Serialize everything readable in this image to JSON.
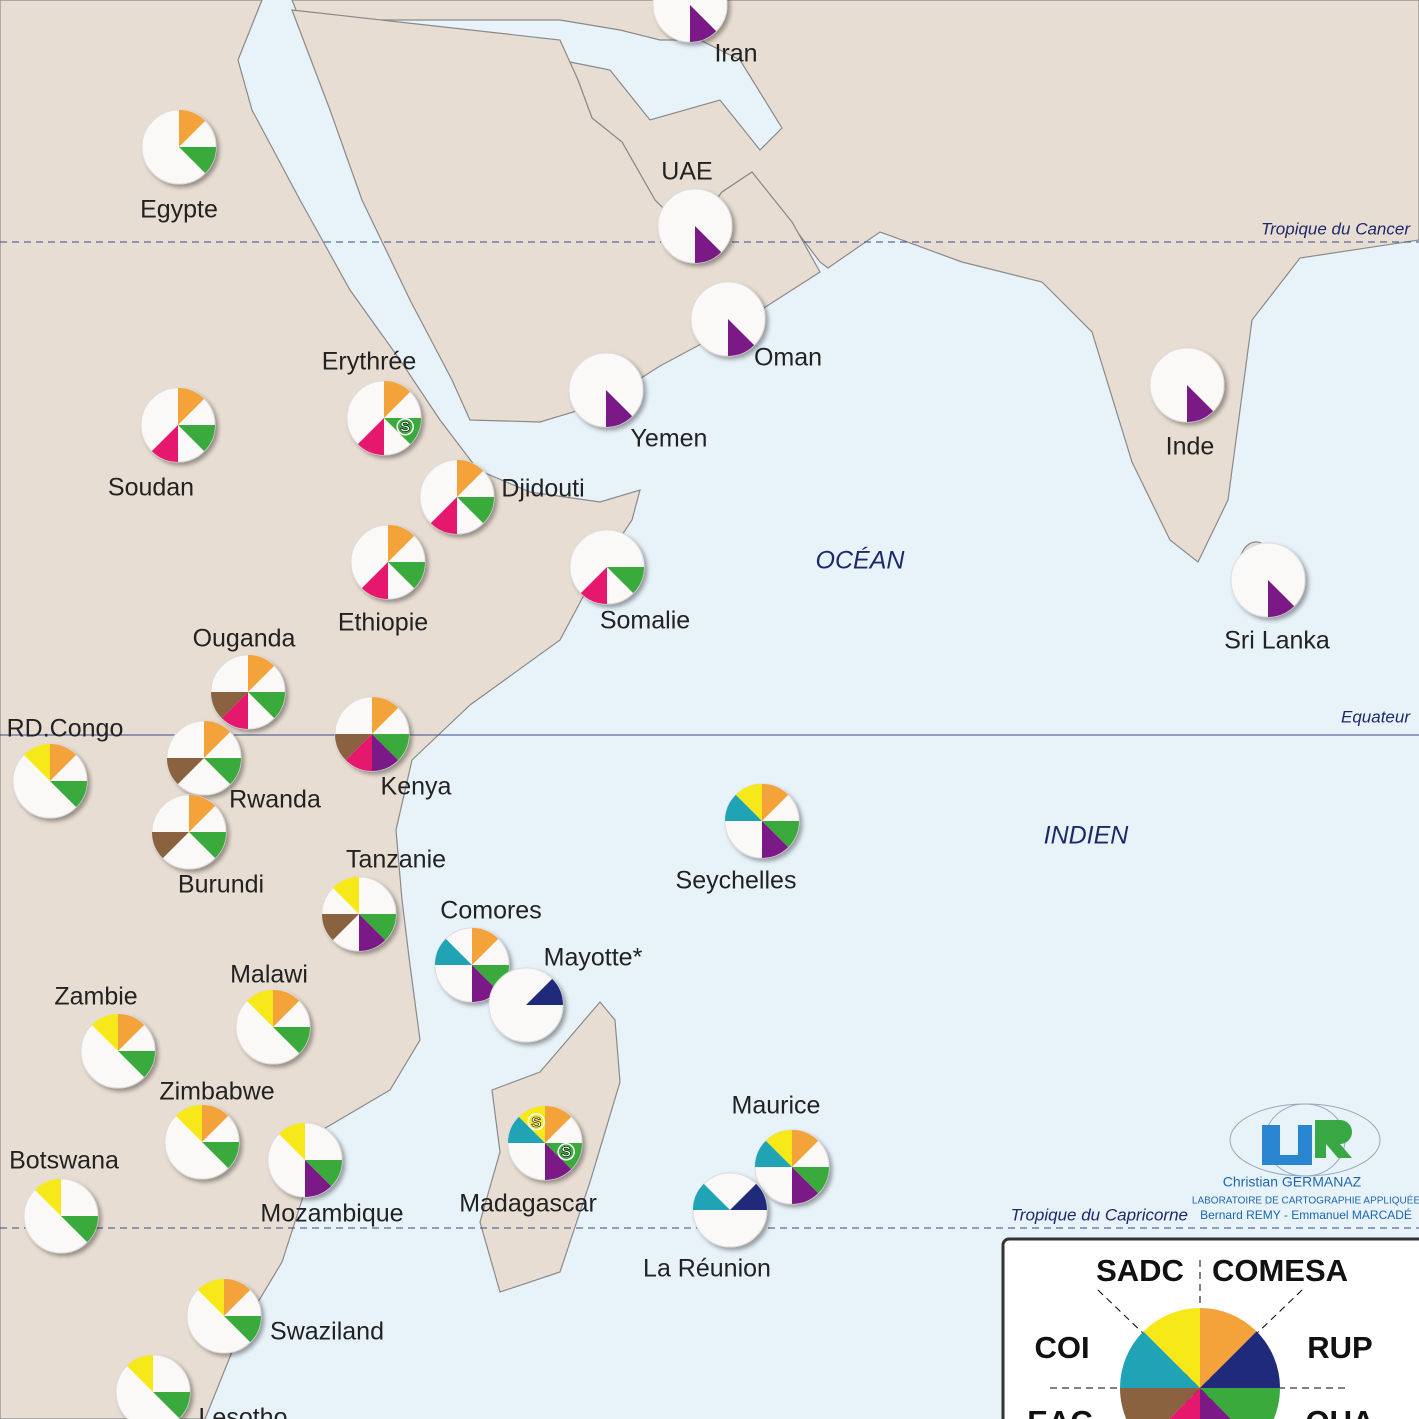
{
  "map": {
    "countries": [
      {
        "name": "Iran",
        "colors": [
          "#7b1a86"
        ]
      },
      {
        "name": "Egypte",
        "colors": [
          "#f4a23a",
          "#3aaa3c"
        ]
      },
      {
        "name": "UAE",
        "colors": [
          "#7b1a86"
        ]
      },
      {
        "name": "Oman",
        "colors": [
          "#7b1a86"
        ]
      },
      {
        "name": "Yemen",
        "colors": [
          "#7b1a86"
        ]
      },
      {
        "name": "Inde",
        "colors": [
          "#7b1a86"
        ]
      },
      {
        "name": "Sri Lanka",
        "colors": [
          "#7b1a86"
        ]
      },
      {
        "name": "Soudan",
        "colors": [
          "#f4a23a",
          "#3aaa3c",
          "#e5186e"
        ]
      },
      {
        "name": "Erythrée",
        "colors": [
          "#f4a23a",
          "#3aaa3c",
          "#e5186e"
        ],
        "suspended": [
          "#3aaa3c"
        ]
      },
      {
        "name": "Djidouti",
        "colors": [
          "#f4a23a",
          "#3aaa3c",
          "#e5186e"
        ]
      },
      {
        "name": "Ethiopie",
        "colors": [
          "#f4a23a",
          "#3aaa3c",
          "#e5186e"
        ]
      },
      {
        "name": "Somalie",
        "colors": [
          "#3aaa3c",
          "#e5186e"
        ]
      },
      {
        "name": "Ouganda",
        "colors": [
          "#f4a23a",
          "#3aaa3c",
          "#e5186e",
          "#8b6240"
        ]
      },
      {
        "name": "RD.Congo",
        "colors": [
          "#f7e81a",
          "#f4a23a",
          "#3aaa3c"
        ]
      },
      {
        "name": "Rwanda",
        "colors": [
          "#f4a23a",
          "#3aaa3c",
          "#8b6240"
        ]
      },
      {
        "name": "Kenya",
        "colors": [
          "#f4a23a",
          "#3aaa3c",
          "#7b1a86",
          "#e5186e",
          "#8b6240"
        ]
      },
      {
        "name": "Burundi",
        "colors": [
          "#f4a23a",
          "#3aaa3c",
          "#8b6240"
        ]
      },
      {
        "name": "Tanzanie",
        "colors": [
          "#f7e81a",
          "#3aaa3c",
          "#7b1a86",
          "#8b6240"
        ]
      },
      {
        "name": "Seychelles",
        "colors": [
          "#f7e81a",
          "#f4a23a",
          "#3aaa3c",
          "#7b1a86",
          "#1fa3b5"
        ]
      },
      {
        "name": "Comores",
        "colors": [
          "#f4a23a",
          "#3aaa3c",
          "#7b1a86",
          "#1fa3b5"
        ]
      },
      {
        "name": "Mayotte*",
        "colors": [
          "#1f2a7a"
        ]
      },
      {
        "name": "Malawi",
        "colors": [
          "#f7e81a",
          "#f4a23a",
          "#3aaa3c"
        ]
      },
      {
        "name": "Zambie",
        "colors": [
          "#f7e81a",
          "#f4a23a",
          "#3aaa3c"
        ]
      },
      {
        "name": "Zimbabwe",
        "colors": [
          "#f7e81a",
          "#f4a23a",
          "#3aaa3c"
        ]
      },
      {
        "name": "Madagascar",
        "colors": [
          "#f7e81a",
          "#f4a23a",
          "#3aaa3c",
          "#7b1a86",
          "#1fa3b5"
        ],
        "suspended": [
          "#f7e81a",
          "#3aaa3c"
        ]
      },
      {
        "name": "Maurice",
        "colors": [
          "#f7e81a",
          "#f4a23a",
          "#3aaa3c",
          "#7b1a86",
          "#1fa3b5"
        ]
      },
      {
        "name": "La Réunion",
        "colors": [
          "#1fa3b5",
          "#1f2a7a"
        ]
      },
      {
        "name": "Mozambique",
        "colors": [
          "#f7e81a",
          "#3aaa3c",
          "#7b1a86"
        ]
      },
      {
        "name": "Botswana",
        "colors": [
          "#f7e81a",
          "#3aaa3c"
        ]
      },
      {
        "name": "Swaziland",
        "colors": [
          "#f7e81a",
          "#f4a23a",
          "#3aaa3c"
        ]
      },
      {
        "name": "Lesotho",
        "colors": [
          "#f7e81a",
          "#3aaa3c"
        ]
      }
    ],
    "suspended_mark": "S",
    "lines": [
      "Tropique du Cancer",
      "Equateur",
      "Tropique du Capricorne"
    ],
    "ocean": [
      "OCÉAN",
      "INDIEN"
    ],
    "credits": {
      "author": "Christian GERMANAZ",
      "lab": "LABORATOIRE DE CARTOGRAPHIE APPLIQUÉE",
      "team": "Bernard REMY - Emmanuel MARCADÉ"
    },
    "legend": {
      "items": [
        {
          "label": "COMESA",
          "color": "#f4a23a"
        },
        {
          "label": "RUP",
          "color": "#1f2a7a"
        },
        {
          "label": "OUA",
          "color": "#3aaa3c"
        },
        {
          "color": "#7b1a86"
        },
        {
          "color": "#e5186e"
        },
        {
          "label": "EAC",
          "color": "#8b6240"
        },
        {
          "label": "COI",
          "color": "#1fa3b5"
        },
        {
          "label": "SADC",
          "color": "#f7e81a"
        }
      ]
    }
  }
}
